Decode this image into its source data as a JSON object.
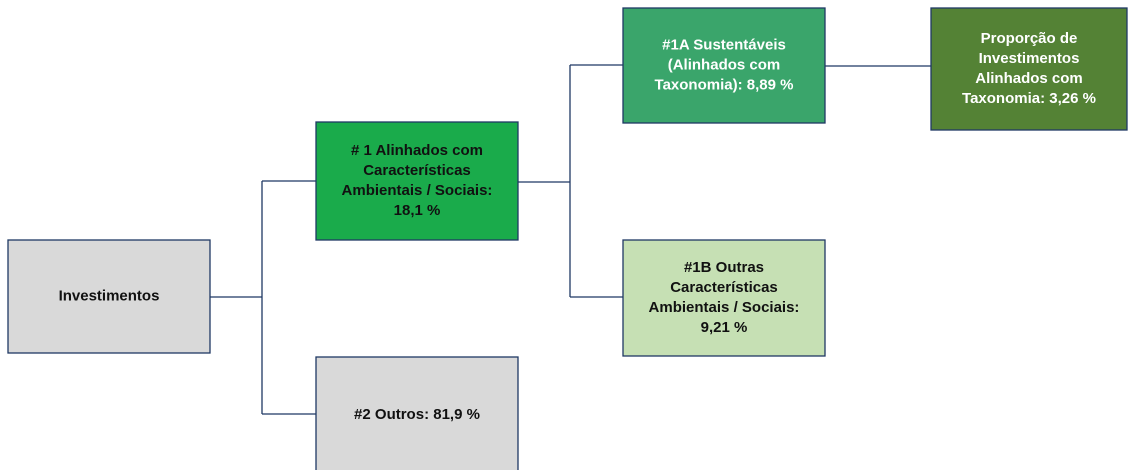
{
  "nodes": [
    {
      "lines": [
        "Investimentos"
      ]
    },
    {
      "lines": [
        "# 1 Alinhados com",
        "Características",
        "Ambientais / Sociais:",
        "18,1 %"
      ]
    },
    {
      "lines": [
        "#2 Outros: 81,9 %"
      ]
    },
    {
      "lines": [
        "#1A Sustentáveis",
        "(Alinhados com",
        "Taxonomia): 8,89 %"
      ]
    },
    {
      "lines": [
        "#1B Outras",
        "Características",
        "Ambientais / Sociais:",
        "9,21 %"
      ]
    },
    {
      "lines": [
        "Proporção de",
        "Investimentos",
        "Alinhados com",
        "Taxonomia: 3,26 %"
      ]
    }
  ]
}
